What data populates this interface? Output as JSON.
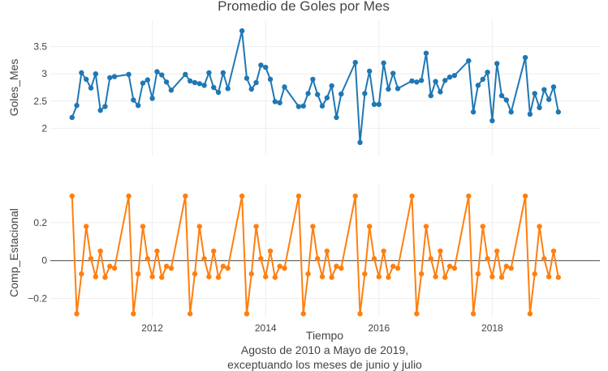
{
  "chart_data": [
    {
      "type": "line",
      "title": "Promedio de Goles por Mes",
      "ylabel": "Goles_Mes",
      "ylim": [
        1.5,
        4.0
      ],
      "yticks": [
        2,
        2.5,
        3,
        3.5
      ],
      "ytick_labels": [
        "2",
        "2.5",
        "3",
        "3.5"
      ],
      "color": "#1f77b4",
      "x_start": "2010-08",
      "months_per_year": 10,
      "series": [
        {
          "values": [
            2.2,
            2.42,
            3.02,
            2.9,
            2.74,
            3.0,
            2.33,
            2.4,
            2.93,
            2.95,
            2.99,
            2.52,
            2.42,
            2.83,
            2.89,
            2.55,
            3.04,
            2.98,
            2.85,
            2.7,
            2.99,
            2.87,
            2.84,
            2.82,
            2.79,
            3.02,
            2.75,
            2.66,
            3.02,
            2.73,
            3.79,
            2.92,
            2.72,
            2.84,
            3.16,
            3.12,
            2.9,
            2.49,
            2.47,
            2.76,
            2.4,
            2.41,
            2.64,
            2.9,
            2.62,
            2.41,
            2.56,
            2.78,
            2.2,
            2.63,
            3.21,
            1.74,
            2.64,
            3.05,
            2.44,
            2.44,
            3.2,
            2.72,
            3.01,
            2.73,
            2.87,
            2.85,
            2.88,
            3.38,
            2.6,
            2.86,
            2.67,
            2.88,
            2.94,
            2.97,
            3.24,
            2.3,
            2.79,
            2.9,
            3.03,
            2.14,
            3.19,
            2.6,
            2.52,
            2.3,
            3.3,
            2.26,
            2.64,
            2.38,
            2.71,
            2.53,
            2.76,
            2.3
          ]
        }
      ]
    },
    {
      "type": "line",
      "ylabel": "Comp_Estacional",
      "xlabel": "Tiempo",
      "ylim": [
        -0.3,
        0.4
      ],
      "yticks": [
        -0.2,
        0,
        0.2
      ],
      "ytick_labels": [
        "−0.2",
        "0",
        "0.2"
      ],
      "xticks": [
        2012,
        2014,
        2016,
        2018
      ],
      "color": "#ff7f0e",
      "series": [
        {
          "values": [
            0.34,
            -0.28,
            -0.07,
            0.18,
            0.01,
            -0.085,
            0.05,
            -0.088,
            -0.03,
            -0.04,
            0.34,
            -0.28,
            -0.07,
            0.18,
            0.01,
            -0.085,
            0.05,
            -0.088,
            -0.03,
            -0.04,
            0.34,
            -0.28,
            -0.07,
            0.18,
            0.01,
            -0.085,
            0.05,
            -0.088,
            -0.03,
            -0.04,
            0.34,
            -0.28,
            -0.07,
            0.18,
            0.01,
            -0.085,
            0.05,
            -0.088,
            -0.03,
            -0.04,
            0.34,
            -0.28,
            -0.07,
            0.18,
            0.01,
            -0.085,
            0.05,
            -0.088,
            -0.03,
            -0.04,
            0.34,
            -0.28,
            -0.07,
            0.18,
            0.01,
            -0.085,
            0.05,
            -0.088,
            -0.03,
            -0.04,
            0.34,
            -0.28,
            -0.07,
            0.18,
            0.01,
            -0.085,
            0.05,
            -0.088,
            -0.03,
            -0.04,
            0.34,
            -0.28,
            -0.07,
            0.18,
            0.01,
            -0.085,
            0.05,
            -0.088,
            -0.03,
            -0.04,
            0.34,
            -0.28,
            -0.07,
            0.18,
            0.01,
            -0.085,
            0.05,
            -0.088
          ]
        }
      ]
    }
  ],
  "caption": {
    "line1": "Agosto de 2010 a Mayo de 2019,",
    "line2": "exceptuando los meses de junio y julio"
  }
}
